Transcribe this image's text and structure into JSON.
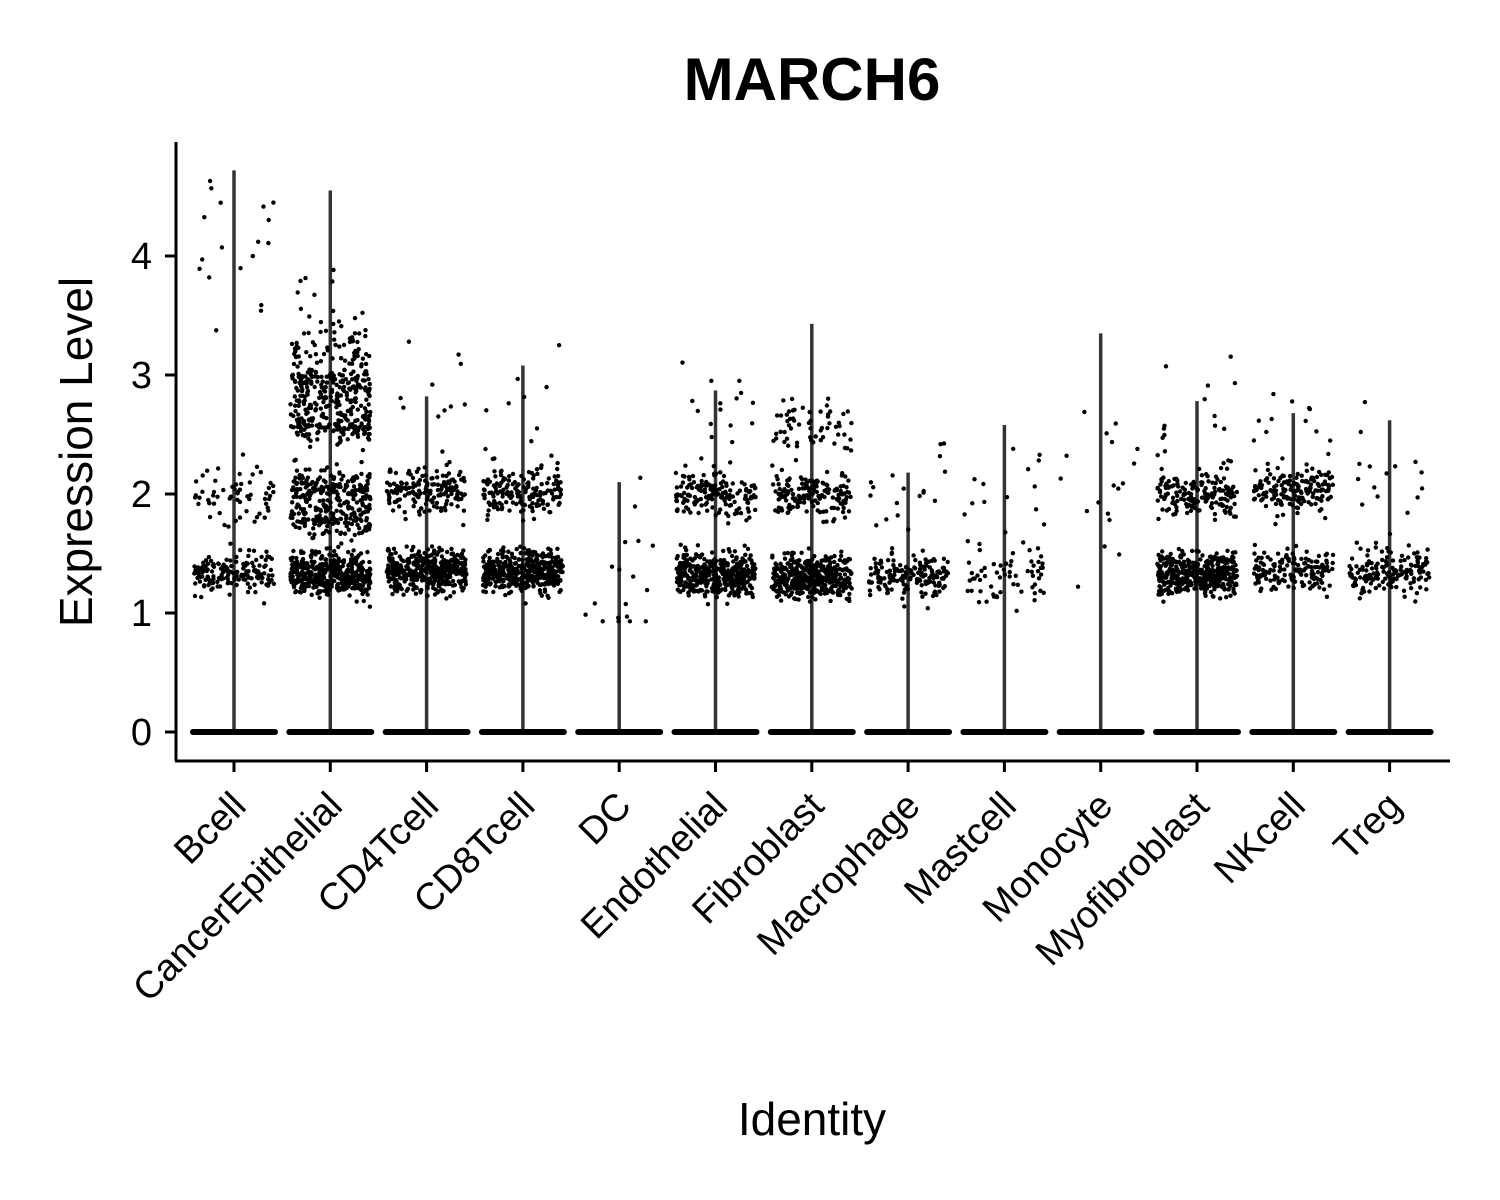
{
  "chart_data": {
    "type": "scatter",
    "subtype": "violin-with-jittered-points",
    "title": "MARCH6",
    "xlabel": "Identity",
    "ylabel": "Expression Level",
    "ylim": [
      -0.22,
      4.92
    ],
    "yticks": [
      0,
      1,
      2,
      3,
      4
    ],
    "grid": false,
    "legend": "none",
    "colors": {
      "points": "#000000",
      "violin": "#333333",
      "axis": "#000000"
    },
    "categories": [
      "Bcell",
      "CancerEpithelial",
      "CD4Tcell",
      "CD8Tcell",
      "DC",
      "Endothelial",
      "Fibroblast",
      "Macrophage",
      "Mastcell",
      "Monocyte",
      "Myofibroblast",
      "NKcell",
      "Treg"
    ],
    "violin_max": [
      4.72,
      4.55,
      2.82,
      3.08,
      2.1,
      2.87,
      3.43,
      2.18,
      2.58,
      3.35,
      2.78,
      2.68,
      2.62
    ],
    "expression_bands": [
      {
        "category": "Bcell",
        "bands": [
          {
            "center": 0,
            "count": "heavy"
          },
          {
            "center": 1.33,
            "count": "moderate"
          },
          {
            "center": 2.0,
            "count": "light"
          },
          {
            "center": 4.1,
            "count": "sparse"
          }
        ]
      },
      {
        "category": "CancerEpithelial",
        "bands": [
          {
            "center": 0,
            "count": "heavy"
          },
          {
            "center": 1.33,
            "count": "heavy"
          },
          {
            "center": 1.8,
            "count": "moderate"
          },
          {
            "center": 2.05,
            "count": "moderate"
          },
          {
            "center": 2.6,
            "count": "moderate"
          },
          {
            "center": 2.9,
            "count": "moderate"
          },
          {
            "center": 3.2,
            "count": "light"
          },
          {
            "center": 3.5,
            "count": "sparse"
          }
        ]
      },
      {
        "category": "CD4Tcell",
        "bands": [
          {
            "center": 0,
            "count": "heavy"
          },
          {
            "center": 1.35,
            "count": "heavy"
          },
          {
            "center": 2.02,
            "count": "moderate"
          },
          {
            "center": 2.5,
            "count": "sparse"
          }
        ]
      },
      {
        "category": "CD8Tcell",
        "bands": [
          {
            "center": 0,
            "count": "heavy"
          },
          {
            "center": 1.35,
            "count": "heavy"
          },
          {
            "center": 2.02,
            "count": "moderate"
          },
          {
            "center": 2.5,
            "count": "sparse"
          }
        ]
      },
      {
        "category": "DC",
        "bands": [
          {
            "center": 0,
            "count": "heavy"
          },
          {
            "center": 1.27,
            "count": "sparse"
          }
        ]
      },
      {
        "category": "Endothelial",
        "bands": [
          {
            "center": 0,
            "count": "heavy"
          },
          {
            "center": 1.33,
            "count": "heavy"
          },
          {
            "center": 2.0,
            "count": "moderate"
          },
          {
            "center": 2.6,
            "count": "sparse"
          }
        ]
      },
      {
        "category": "Fibroblast",
        "bands": [
          {
            "center": 0,
            "count": "heavy"
          },
          {
            "center": 1.3,
            "count": "heavy"
          },
          {
            "center": 2.0,
            "count": "moderate"
          },
          {
            "center": 2.55,
            "count": "light"
          }
        ]
      },
      {
        "category": "Macrophage",
        "bands": [
          {
            "center": 0,
            "count": "heavy"
          },
          {
            "center": 1.3,
            "count": "moderate"
          },
          {
            "center": 2.0,
            "count": "sparse"
          }
        ]
      },
      {
        "category": "Mastcell",
        "bands": [
          {
            "center": 0,
            "count": "heavy"
          },
          {
            "center": 1.3,
            "count": "light"
          },
          {
            "center": 2.0,
            "count": "sparse"
          }
        ]
      },
      {
        "category": "Monocyte",
        "bands": [
          {
            "center": 0,
            "count": "heavy"
          },
          {
            "center": 2.1,
            "count": "sparse"
          }
        ]
      },
      {
        "category": "Myofibroblast",
        "bands": [
          {
            "center": 0,
            "count": "heavy"
          },
          {
            "center": 1.33,
            "count": "heavy"
          },
          {
            "center": 2.0,
            "count": "moderate"
          },
          {
            "center": 2.55,
            "count": "sparse"
          }
        ]
      },
      {
        "category": "NKcell",
        "bands": [
          {
            "center": 0,
            "count": "heavy"
          },
          {
            "center": 1.35,
            "count": "moderate"
          },
          {
            "center": 2.02,
            "count": "moderate"
          },
          {
            "center": 2.5,
            "count": "sparse"
          }
        ]
      },
      {
        "category": "Treg",
        "bands": [
          {
            "center": 0,
            "count": "heavy"
          },
          {
            "center": 1.35,
            "count": "moderate"
          },
          {
            "center": 2.0,
            "count": "sparse"
          }
        ]
      }
    ]
  }
}
